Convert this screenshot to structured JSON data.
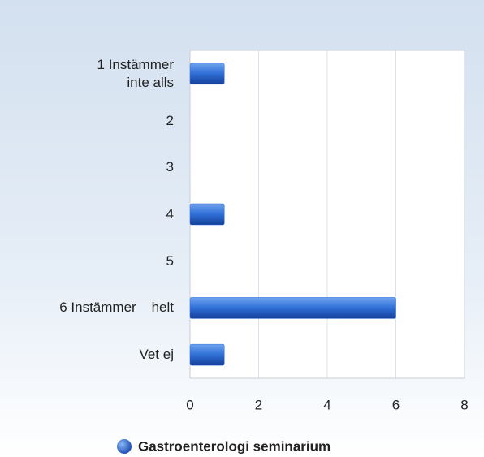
{
  "chart_data": {
    "type": "bar",
    "orientation": "horizontal",
    "categories": [
      "1 Instämmer\ninte alls",
      "2",
      "3",
      "4",
      "5",
      "6 Instämmer    helt",
      "Vet ej"
    ],
    "series": [
      {
        "name": "Gastroenterologi seminarium",
        "color": "#2f6fd6",
        "values": [
          1,
          0,
          0,
          1,
          0,
          6,
          1
        ]
      }
    ],
    "xlim": [
      0,
      8
    ],
    "xticks": [
      0,
      2,
      4,
      6,
      8
    ],
    "grid": true,
    "legend": "bottom"
  }
}
